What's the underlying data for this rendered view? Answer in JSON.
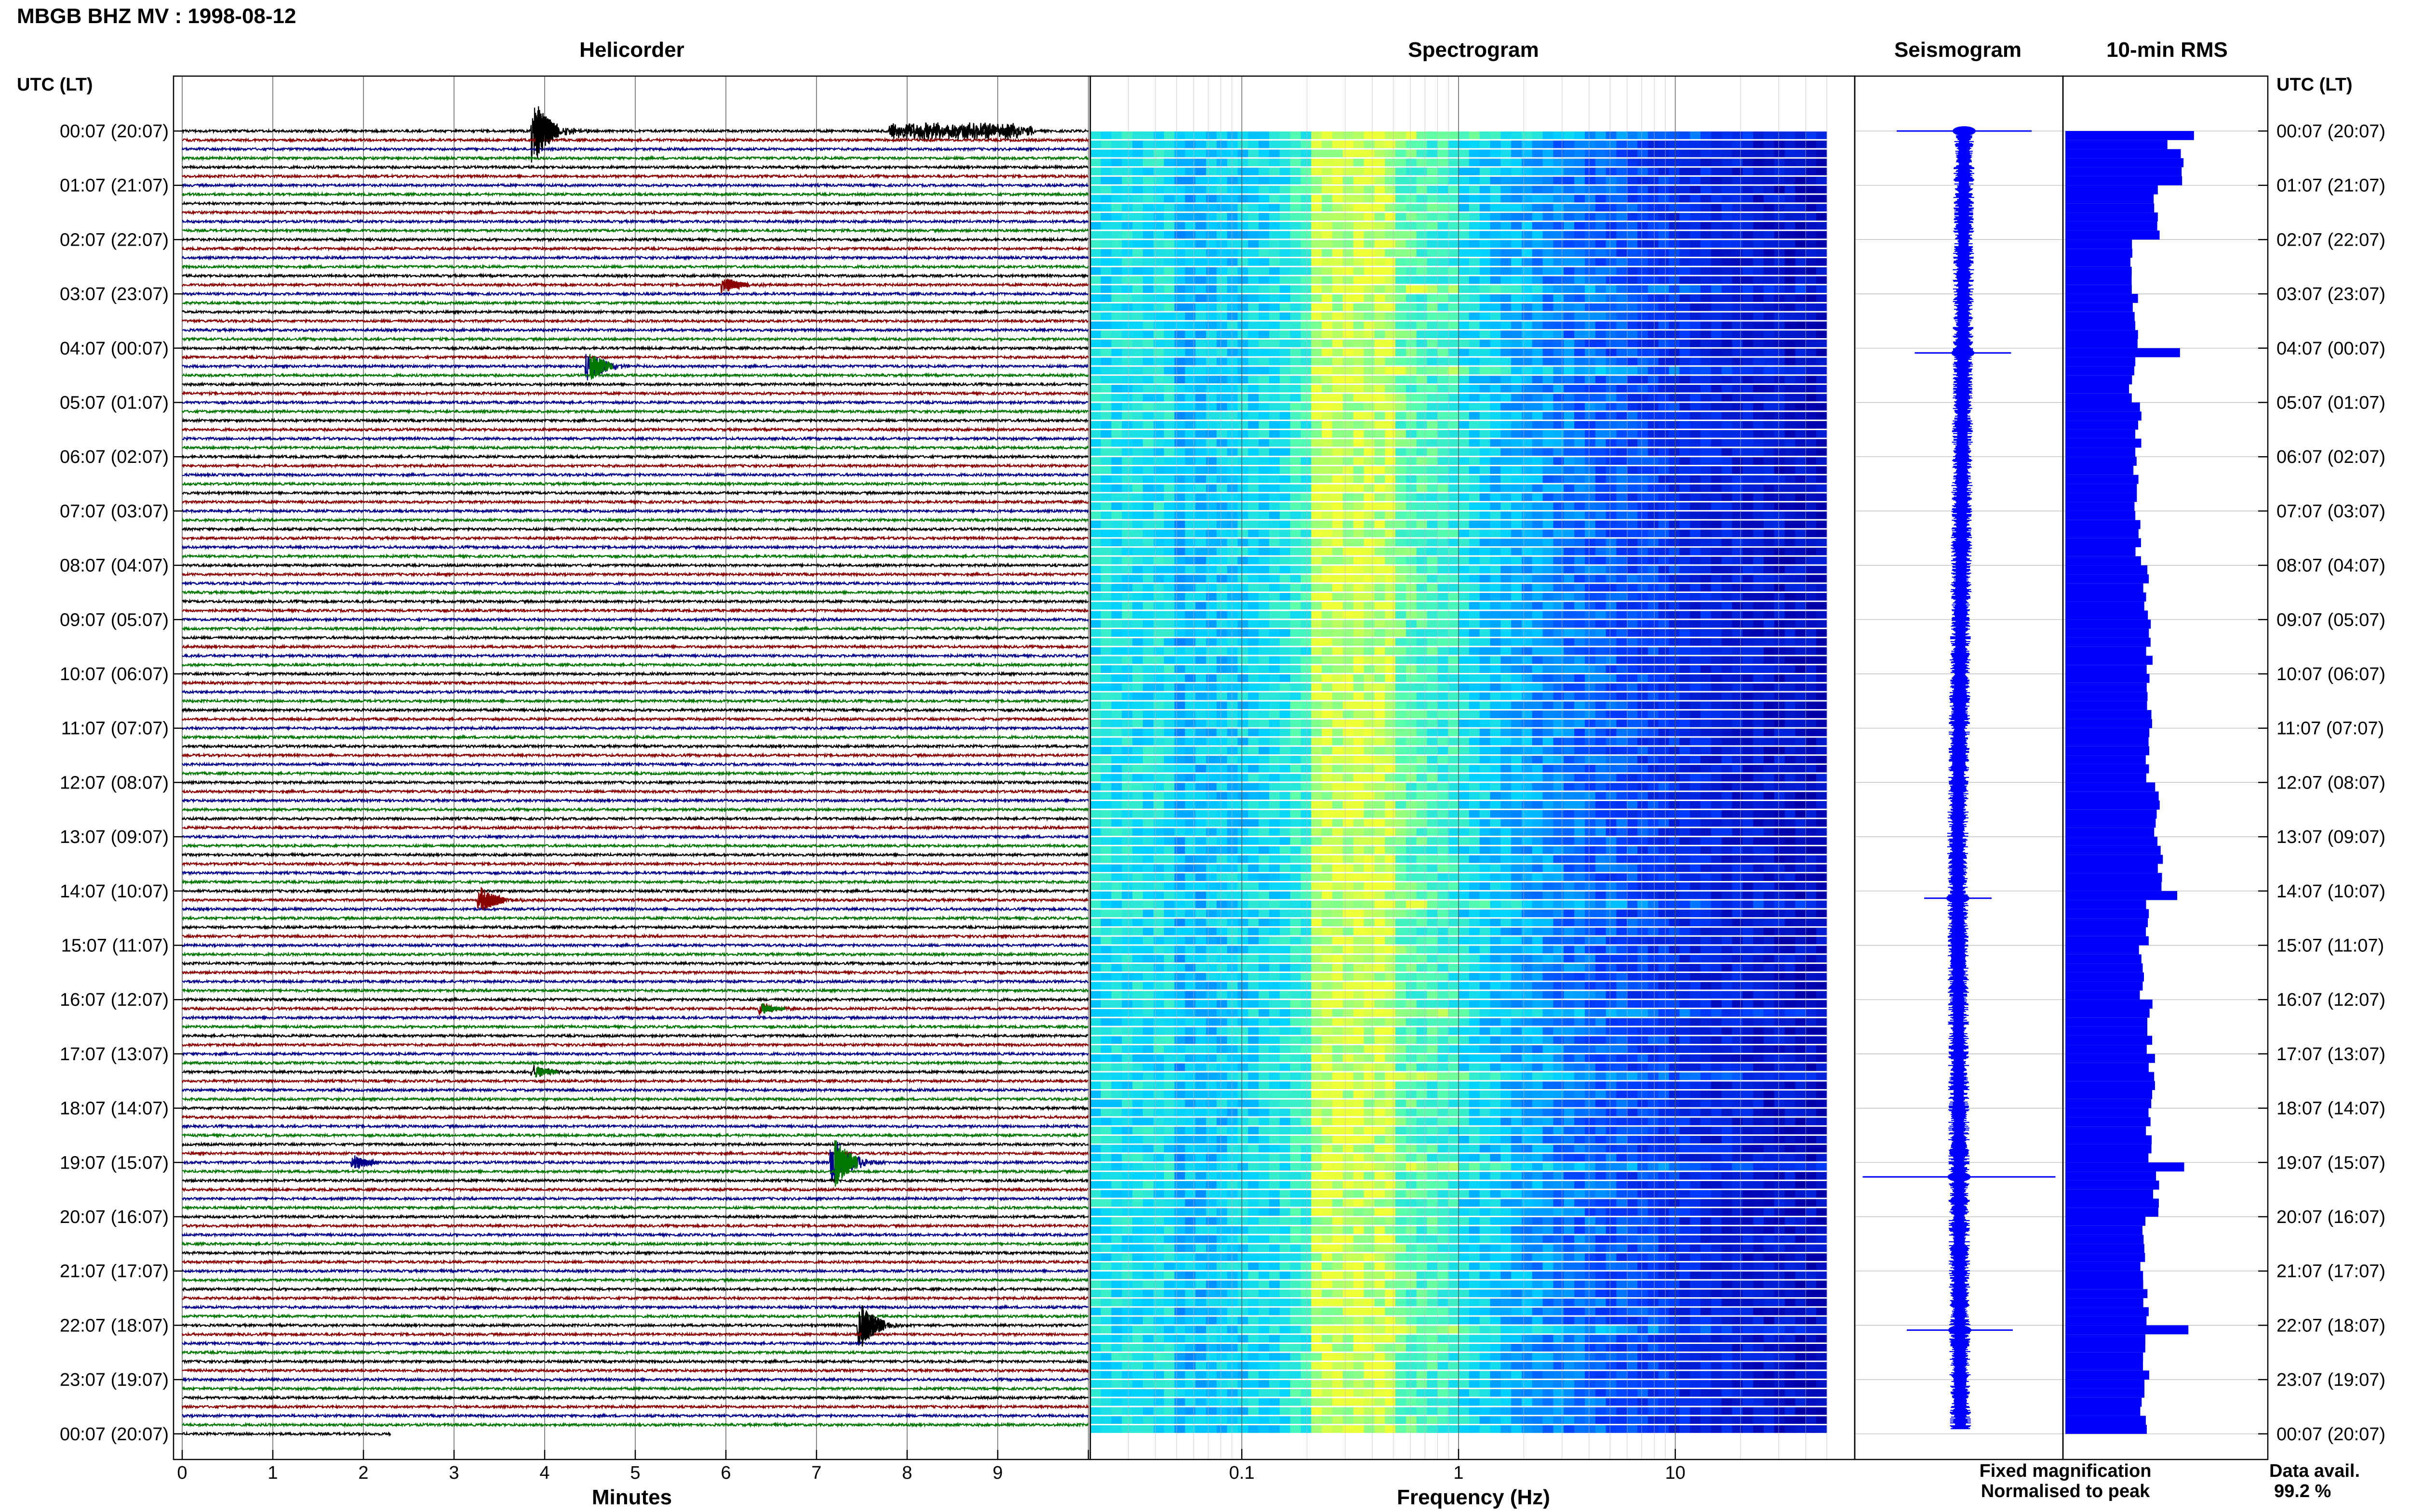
{
  "page": {
    "title": "MBGB BHZ MV : 1998-08-12"
  },
  "panels": {
    "helicorder": "Helicorder",
    "spectrogram": "Spectrogram",
    "seismogram": "Seismogram",
    "rms": "10-min RMS"
  },
  "axes": {
    "time_header_left": "UTC (LT)",
    "time_header_right": "UTC (LT)",
    "minutes_label": "Minutes",
    "frequency_label": "Frequency (Hz)"
  },
  "legend": {
    "fixed": "Fixed magnification",
    "normalised": "Normalised to peak",
    "fixed_color": "#0000ff",
    "normalised_color": "#ff0000"
  },
  "availability": {
    "label": "Data avail.",
    "value": "99.2 %"
  },
  "colors": {
    "trace_black": "#000000",
    "trace_red": "#8b0000",
    "trace_blue": "#00008b",
    "trace_green": "#007700",
    "seismogram": "#0000ff",
    "rms_bar": "#0000ff",
    "spectrogram_low": "#0000c8",
    "spectrogram_mid": "#00d8ff",
    "spectrogram_high": "#ffff40"
  },
  "chart_data": {
    "type": "heatmap",
    "hour_labels": [
      "00:07 (20:07)",
      "01:07 (21:07)",
      "02:07 (22:07)",
      "03:07 (23:07)",
      "04:07 (00:07)",
      "05:07 (01:07)",
      "06:07 (02:07)",
      "07:07 (03:07)",
      "08:07 (04:07)",
      "09:07 (05:07)",
      "10:07 (06:07)",
      "11:07 (07:07)",
      "12:07 (08:07)",
      "13:07 (09:07)",
      "14:07 (10:07)",
      "15:07 (11:07)",
      "16:07 (12:07)",
      "17:07 (13:07)",
      "18:07 (14:07)",
      "19:07 (15:07)",
      "20:07 (16:07)",
      "21:07 (17:07)",
      "22:07 (18:07)",
      "23:07 (19:07)",
      "00:07 (20:07)"
    ],
    "minutes_ticks": [
      "0",
      "1",
      "2",
      "3",
      "4",
      "5",
      "6",
      "7",
      "8",
      "9"
    ],
    "minutes_range": [
      0,
      10
    ],
    "frequency_ticks": [
      "0.1",
      "1",
      "10"
    ],
    "frequency_range_hz": [
      0.02,
      50
    ],
    "frequency_scale": "log",
    "rows_per_hour": 6,
    "events": [
      {
        "row": 0,
        "minute": 3.9,
        "amp": 3.2,
        "color": "black"
      },
      {
        "row": 0,
        "minute": 8.6,
        "amp": 1.0,
        "color": "black",
        "long": true
      },
      {
        "row": 17,
        "minute": 6.0,
        "amp": 0.8,
        "color": "red"
      },
      {
        "row": 26,
        "minute": 4.5,
        "amp": 1.6,
        "color": "green"
      },
      {
        "row": 85,
        "minute": 3.3,
        "amp": 1.3,
        "color": "red"
      },
      {
        "row": 97,
        "minute": 6.4,
        "amp": 0.6,
        "color": "green"
      },
      {
        "row": 104,
        "minute": 3.9,
        "amp": 0.7,
        "color": "green"
      },
      {
        "row": 114,
        "minute": 1.9,
        "amp": 0.7,
        "color": "blue"
      },
      {
        "row": 114,
        "minute": 7.2,
        "amp": 2.8,
        "color": "green"
      },
      {
        "row": 132,
        "minute": 7.5,
        "amp": 2.4,
        "color": "black"
      }
    ],
    "rms_hourly": [
      8.5,
      6.5,
      4.8,
      5.0,
      4.8,
      5.2,
      5.0,
      5.2,
      5.8,
      6.0,
      6.0,
      5.8,
      6.5,
      6.8,
      6.0,
      5.5,
      6.0,
      6.2,
      6.0,
      6.5,
      5.6,
      5.8,
      5.8,
      5.6,
      0
    ],
    "rms_spikes": [
      {
        "row": 24,
        "value": 8.2
      },
      {
        "row": 84,
        "value": 8.0
      },
      {
        "row": 114,
        "value": 8.5
      },
      {
        "row": 132,
        "value": 8.8
      }
    ]
  }
}
